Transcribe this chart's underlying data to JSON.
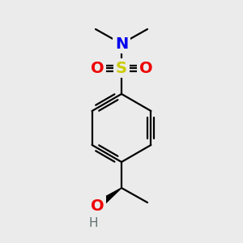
{
  "bg_color": "#ebebeb",
  "bond_color": "#000000",
  "atom_colors": {
    "N": "#0000ee",
    "O": "#ee0000",
    "S": "#cccc00",
    "H": "#607070"
  },
  "bond_lw": 1.6,
  "figsize": [
    3.0,
    3.0
  ],
  "dpi": 100
}
